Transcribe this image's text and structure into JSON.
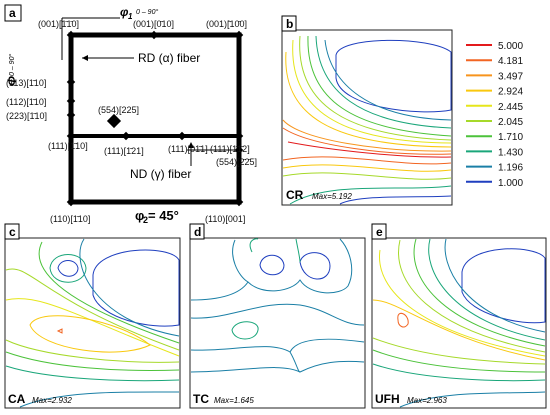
{
  "panels": {
    "a": {
      "letter": "a",
      "axis_phi1": "φ",
      "axis_phi1_sub": "1",
      "axis_phi1_range": "0 – 90°",
      "axis_Phi": "Φ",
      "axis_Phi_range": "0 – 90°",
      "phi2": "φ",
      "phi2_sub": "2",
      "phi2_value": " = 45°",
      "fiber_rd": "RD (α) fiber",
      "fiber_nd": "ND (γ) fiber",
      "labels": {
        "top_left": "(001)[1̄1̄0]",
        "top_mid": "(001)[0̄10]",
        "top_right": "(001)[̄10̄0]",
        "left_113": "(113)[1̄10]",
        "left_112": "(112)[1̄10]",
        "left_223": "(223)[1̄10]",
        "mid_554": "(554)[225]",
        "gamma_left": "(111)[1̄10]",
        "gamma_121": "(111)[1̄21]",
        "gamma_011": "(111)[01̄1]",
        "gamma_112": "(111)[1̄1̄2]",
        "right_554": "(554)[2̄2̄5]",
        "bottom_left": "(110)[1̄10]",
        "bottom_right": "(110)[001]"
      }
    },
    "b": {
      "letter": "b",
      "name": "CR",
      "max": "Max=5.192"
    },
    "c": {
      "letter": "c",
      "name": "CA",
      "max": "Max=2.932"
    },
    "d": {
      "letter": "d",
      "name": "TC",
      "max": "Max=1.645"
    },
    "e": {
      "letter": "e",
      "name": "UFH",
      "max": "Max=2.963"
    }
  },
  "legend": [
    {
      "value": "5.000",
      "color": "#e31a1c"
    },
    {
      "value": "4.181",
      "color": "#f26522"
    },
    {
      "value": "3.497",
      "color": "#f7941d"
    },
    {
      "value": "2.924",
      "color": "#f9c80e"
    },
    {
      "value": "2.445",
      "color": "#e6e61a"
    },
    {
      "value": "2.045",
      "color": "#a6d92a"
    },
    {
      "value": "1.710",
      "color": "#4cc23a"
    },
    {
      "value": "1.430",
      "color": "#1aa67a"
    },
    {
      "value": "1.196",
      "color": "#1a7fa6"
    },
    {
      "value": "1.000",
      "color": "#1f3fbf"
    }
  ]
}
